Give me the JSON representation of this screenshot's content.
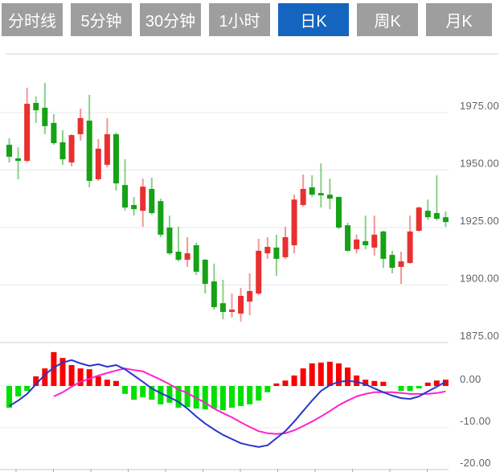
{
  "tabs": {
    "items": [
      {
        "label": "分时线",
        "selected": false
      },
      {
        "label": "5分钟",
        "selected": false
      },
      {
        "label": "30分钟",
        "selected": false
      },
      {
        "label": "1小时",
        "selected": false
      },
      {
        "label": "日K",
        "selected": true
      },
      {
        "label": "周K",
        "selected": false
      },
      {
        "label": "月K",
        "selected": false
      }
    ]
  },
  "colors": {
    "tab_bg": "#9e9e9e",
    "tab_selected_bg": "#1565c0",
    "tab_text": "#ffffff",
    "candle_up": "#e83030",
    "candle_down": "#16a216",
    "macd_up": "#fa0000",
    "macd_down": "#00e000",
    "dif_line": "#2836cc",
    "dea_line": "#ff22cc",
    "grid": "#e8e8e8",
    "axis_line": "#c9c9c9",
    "tick": "#aaaaaa",
    "label_text": "#5f6368"
  },
  "chart_data": {
    "type": "candlestick_with_macd",
    "title": "",
    "timeframe_selected": "日K",
    "price_axis": {
      "labels": [
        "1975.00",
        "1950.00",
        "1925.00",
        "1900.00",
        "1875.00"
      ],
      "values": [
        1975,
        1950,
        1925,
        1900,
        1875
      ]
    },
    "macd_axis": {
      "labels": [
        "0.00",
        "-10.00",
        "-20.00"
      ],
      "values": [
        0,
        -10,
        -20
      ]
    },
    "x_tick_count": 12,
    "grid": true,
    "candles_ohlc": [
      [
        1961.0,
        1963.8,
        1953.3,
        1955.8
      ],
      [
        1955.1,
        1959.9,
        1946.0,
        1954.0
      ],
      [
        1954.0,
        1985.8,
        1953.3,
        1978.8
      ],
      [
        1979.2,
        1982.0,
        1970.5,
        1976.0
      ],
      [
        1977.1,
        1987.9,
        1965.6,
        1969.1
      ],
      [
        1970.5,
        1974.3,
        1961.0,
        1961.7
      ],
      [
        1962.1,
        1967.3,
        1952.3,
        1954.7
      ],
      [
        1953.3,
        1965.6,
        1951.6,
        1965.2
      ],
      [
        1965.6,
        1976.7,
        1962.8,
        1972.6
      ],
      [
        1971.5,
        1982.7,
        1942.5,
        1945.3
      ],
      [
        1946.0,
        1963.5,
        1945.3,
        1959.3
      ],
      [
        1952.3,
        1972.6,
        1951.2,
        1965.6
      ],
      [
        1965.6,
        1966.3,
        1941.1,
        1944.2
      ],
      [
        1943.5,
        1954.7,
        1932.3,
        1933.7
      ],
      [
        1934.8,
        1938.3,
        1930.2,
        1933.0
      ],
      [
        1932.3,
        1946.3,
        1925.3,
        1942.8
      ],
      [
        1941.8,
        1946.7,
        1930.6,
        1931.3
      ],
      [
        1936.5,
        1937.6,
        1920.8,
        1921.9
      ],
      [
        1925.0,
        1930.2,
        1913.1,
        1913.8
      ],
      [
        1914.5,
        1925.3,
        1910.3,
        1911.0
      ],
      [
        1911.0,
        1920.8,
        1907.9,
        1913.8
      ],
      [
        1917.3,
        1918.4,
        1904.4,
        1905.8
      ],
      [
        1911.0,
        1911.4,
        1896.3,
        1900.5
      ],
      [
        1901.6,
        1909.3,
        1889.3,
        1890.4
      ],
      [
        1892.1,
        1902.3,
        1885.1,
        1888.3
      ],
      [
        1888.3,
        1896.3,
        1885.8,
        1889.3
      ],
      [
        1887.6,
        1898.8,
        1884.1,
        1895.3
      ],
      [
        1892.8,
        1905.1,
        1886.9,
        1897.4
      ],
      [
        1896.3,
        1920.1,
        1895.6,
        1914.9
      ],
      [
        1913.8,
        1920.8,
        1911.4,
        1916.6
      ],
      [
        1916.3,
        1921.9,
        1904.0,
        1911.4
      ],
      [
        1912.1,
        1925.3,
        1911.4,
        1920.8
      ],
      [
        1917.3,
        1939.3,
        1913.8,
        1937.2
      ],
      [
        1934.8,
        1948.1,
        1934.1,
        1941.8
      ],
      [
        1942.5,
        1947.7,
        1938.3,
        1939.3
      ],
      [
        1940.0,
        1952.9,
        1933.7,
        1939.0
      ],
      [
        1939.3,
        1946.3,
        1933.0,
        1937.6
      ],
      [
        1938.3,
        1938.6,
        1924.3,
        1925.0
      ],
      [
        1926.0,
        1927.1,
        1914.5,
        1914.9
      ],
      [
        1915.6,
        1921.9,
        1913.8,
        1919.8
      ],
      [
        1919.1,
        1930.2,
        1915.6,
        1917.3
      ],
      [
        1916.3,
        1930.2,
        1912.8,
        1921.9
      ],
      [
        1923.3,
        1923.6,
        1907.5,
        1911.4
      ],
      [
        1913.1,
        1914.9,
        1905.1,
        1907.5
      ],
      [
        1907.9,
        1914.5,
        1900.5,
        1910.3
      ],
      [
        1909.6,
        1930.2,
        1909.3,
        1923.3
      ],
      [
        1923.6,
        1934.1,
        1923.3,
        1933.7
      ],
      [
        1932.3,
        1937.2,
        1928.5,
        1929.5
      ],
      [
        1931.3,
        1947.7,
        1928.1,
        1928.8
      ],
      [
        1929.5,
        1932.0,
        1925.3,
        1927.4
      ]
    ],
    "macd": {
      "histogram": [
        -5.2,
        -2.5,
        -1.2,
        2.3,
        4.2,
        8.1,
        6.7,
        5.0,
        4.2,
        4.0,
        2.3,
        1.5,
        1.2,
        -1.9,
        -3.3,
        -2.7,
        -3.3,
        -4.4,
        -4.0,
        -5.2,
        -5.0,
        -5.4,
        -5.6,
        -5.4,
        -5.8,
        -5.2,
        -4.8,
        -4.4,
        -3.5,
        -1.5,
        0.6,
        1.3,
        2.5,
        4.2,
        5.4,
        5.6,
        5.8,
        5.4,
        4.4,
        2.5,
        1.5,
        1.2,
        1.0,
        0.0,
        -1.2,
        -1.2,
        -0.6,
        0.8,
        1.3,
        1.5
      ],
      "dif": [
        -4.8,
        -3.5,
        -1.9,
        0.4,
        2.7,
        4.4,
        5.6,
        6.2,
        5.4,
        4.8,
        5.2,
        4.6,
        5.0,
        4.0,
        2.5,
        1.0,
        -0.6,
        -1.7,
        -2.7,
        -3.8,
        -5.4,
        -7.3,
        -9.0,
        -10.4,
        -11.7,
        -12.7,
        -13.7,
        -14.2,
        -14.6,
        -14.2,
        -12.5,
        -10.8,
        -8.5,
        -6.0,
        -3.5,
        -1.2,
        0.2,
        1.0,
        1.2,
        1.0,
        0.4,
        -0.6,
        -1.5,
        -2.3,
        -2.9,
        -3.1,
        -2.5,
        -1.3,
        -0.2,
        1.0
      ],
      "dea_start_index": 5,
      "dea": [
        -2.5,
        -1.5,
        -0.2,
        1.0,
        1.7,
        2.5,
        3.1,
        3.7,
        4.2,
        3.8,
        3.5,
        2.5,
        1.5,
        0.4,
        -0.8,
        -1.7,
        -2.9,
        -4.0,
        -5.4,
        -6.5,
        -7.5,
        -8.7,
        -9.8,
        -10.8,
        -11.3,
        -11.5,
        -11.3,
        -10.6,
        -9.6,
        -8.5,
        -7.3,
        -6.0,
        -4.6,
        -3.5,
        -2.5,
        -1.9,
        -1.5,
        -1.5,
        -1.5,
        -1.7,
        -1.9,
        -1.9,
        -1.9,
        -1.7,
        -1.3
      ]
    }
  }
}
